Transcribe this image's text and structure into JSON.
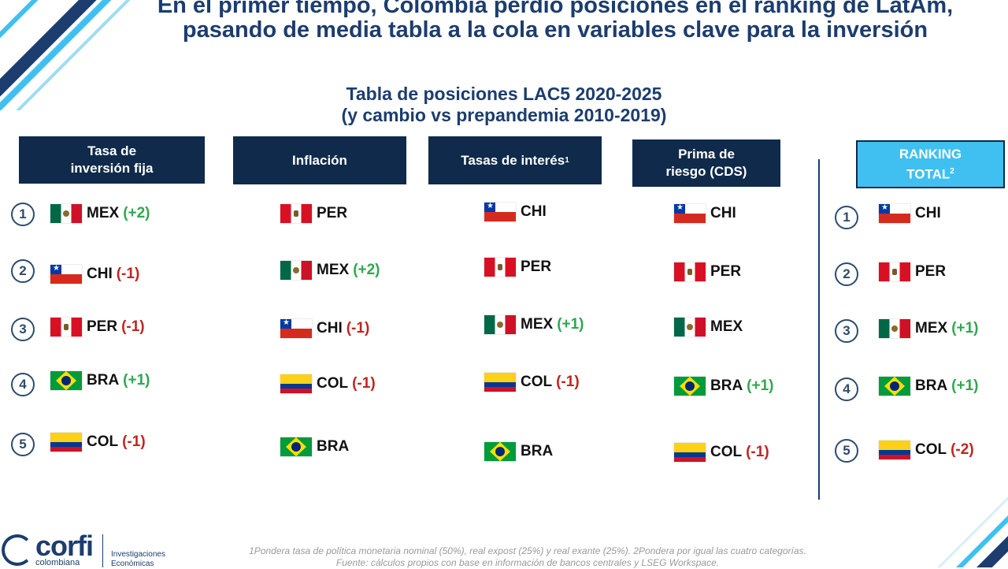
{
  "title": "En el primer tiempo, Colombia perdió posiciones en el ranking de LatAm, pasando de media tabla a la cola en variables clave para la inversión",
  "subtitle_line1": "Tabla de posiciones LAC5 2020-2025",
  "subtitle_line2": "(y cambio vs prepandemia 2010-2019)",
  "columns": [
    {
      "header_line1": "Tasa de",
      "header_line2": "inversión fija",
      "entries": [
        {
          "flag": "mexico-flag",
          "country": "MEX",
          "delta": "(+2)",
          "delta_sign": "positive"
        },
        {
          "flag": "chile-flag",
          "country": "CHI",
          "delta": "(-1)",
          "delta_sign": "negative"
        },
        {
          "flag": "peru-flag",
          "country": "PER",
          "delta": "(-1)",
          "delta_sign": "negative"
        },
        {
          "flag": "brazil-flag",
          "country": "BRA",
          "delta": "(+1)",
          "delta_sign": "positive"
        },
        {
          "flag": "colombia-flag",
          "country": "COL",
          "delta": "(-1)",
          "delta_sign": "negative"
        }
      ]
    },
    {
      "header_line1": "Inflación",
      "header_line2": "",
      "entries": [
        {
          "flag": "peru-flag",
          "country": "PER",
          "delta": "",
          "delta_sign": "none"
        },
        {
          "flag": "mexico-flag",
          "country": "MEX",
          "delta": "(+2)",
          "delta_sign": "positive"
        },
        {
          "flag": "chile-flag",
          "country": "CHI",
          "delta": "(-1)",
          "delta_sign": "negative"
        },
        {
          "flag": "colombia-flag",
          "country": "COL",
          "delta": "(-1)",
          "delta_sign": "negative"
        },
        {
          "flag": "brazil-flag",
          "country": "BRA",
          "delta": "",
          "delta_sign": "none"
        }
      ]
    },
    {
      "header_line1": "Tasas de interés",
      "header_sup": "1",
      "header_line2": "",
      "entries": [
        {
          "flag": "chile-flag",
          "country": "CHI",
          "delta": "",
          "delta_sign": "none"
        },
        {
          "flag": "peru-flag",
          "country": "PER",
          "delta": "",
          "delta_sign": "none"
        },
        {
          "flag": "mexico-flag",
          "country": "MEX",
          "delta": "(+1)",
          "delta_sign": "positive"
        },
        {
          "flag": "colombia-flag",
          "country": "COL",
          "delta": "(-1)",
          "delta_sign": "negative"
        },
        {
          "flag": "brazil-flag",
          "country": "BRA",
          "delta": "",
          "delta_sign": "none"
        }
      ]
    },
    {
      "header_line1": "Prima de",
      "header_line2": "riesgo (CDS)",
      "entries": [
        {
          "flag": "chile-flag",
          "country": "CHI",
          "delta": "",
          "delta_sign": "none"
        },
        {
          "flag": "peru-flag",
          "country": "PER",
          "delta": "",
          "delta_sign": "none"
        },
        {
          "flag": "mexico-flag",
          "country": "MEX",
          "delta": "",
          "delta_sign": "none"
        },
        {
          "flag": "brazil-flag",
          "country": "BRA",
          "delta": "(+1)",
          "delta_sign": "positive"
        },
        {
          "flag": "colombia-flag",
          "country": "COL",
          "delta": "(-1)",
          "delta_sign": "negative"
        }
      ]
    },
    {
      "header_line1": "RANKING",
      "header_line2": "TOTAL",
      "header_sup": "2",
      "entries": [
        {
          "flag": "chile-flag",
          "country": "CHI",
          "delta": "",
          "delta_sign": "none"
        },
        {
          "flag": "peru-flag",
          "country": "PER",
          "delta": "",
          "delta_sign": "none"
        },
        {
          "flag": "mexico-flag",
          "country": "MEX",
          "delta": "(+1)",
          "delta_sign": "positive"
        },
        {
          "flag": "brazil-flag",
          "country": "BRA",
          "delta": "(+1)",
          "delta_sign": "positive"
        },
        {
          "flag": "colombia-flag",
          "country": "COL",
          "delta": "(-2)",
          "delta_sign": "negative"
        }
      ]
    }
  ],
  "ranks": [
    "1",
    "2",
    "3",
    "4",
    "5"
  ],
  "footnote_line1": "1Pondera tasa de política monetaria nominal (50%), real expost (25%) y real exante (25%). 2Pondera por igual las cuatro categorías.",
  "footnote_line2": "Fuente: cálculos propios con base en información de bancos centrales y LSEG Workspace.",
  "logo": {
    "word": "corfi",
    "sub": "colombiana",
    "unit_line1": "Investigaciones",
    "unit_line2": "Económicas"
  },
  "colors": {
    "navy": "#0f2a4a",
    "accent": "#3fc0f0",
    "positive": "#2fa84f",
    "negative": "#c0251f"
  }
}
